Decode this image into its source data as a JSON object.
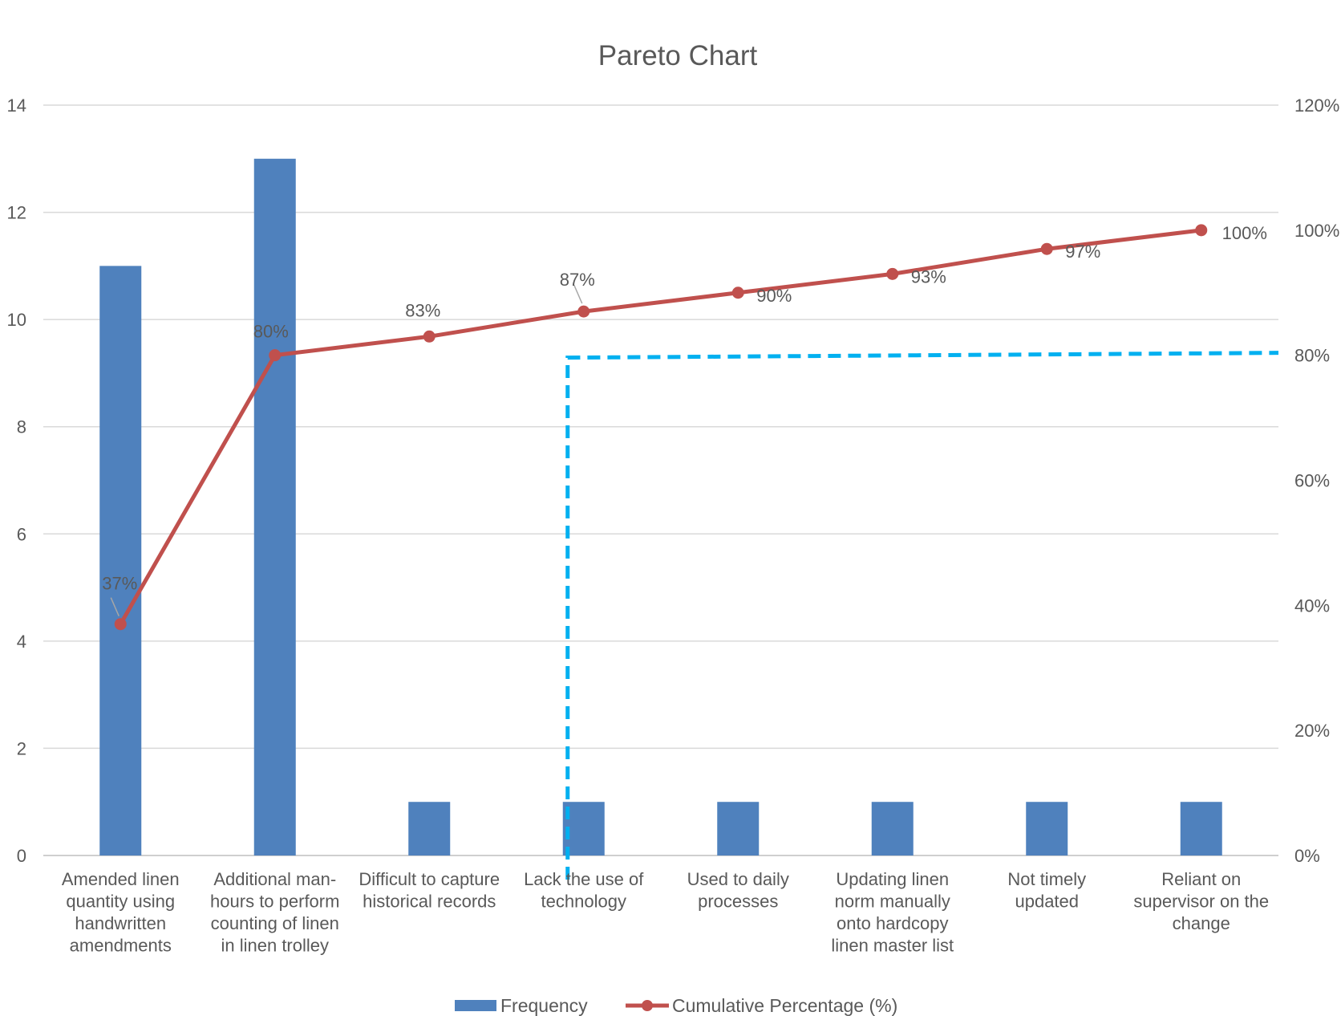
{
  "chart_data": {
    "type": "bar",
    "title": "Pareto Chart",
    "categories": [
      [
        "Amended linen",
        "quantity using",
        "handwritten",
        "amendments"
      ],
      [
        "Additional man-",
        "hours to perform",
        "counting of linen",
        "in linen trolley"
      ],
      [
        "Difficult to capture",
        "historical records"
      ],
      [
        "Lack the use of",
        "technology"
      ],
      [
        "Used to daily",
        "processes"
      ],
      [
        "Updating linen",
        "norm manually",
        "onto hardcopy",
        "linen master list"
      ],
      [
        "Not timely",
        "updated"
      ],
      [
        "Reliant on",
        "supervisor on the",
        "change"
      ]
    ],
    "series": [
      {
        "name": "Frequency",
        "type": "bar",
        "axis": "left",
        "color": "#4F81BD",
        "values": [
          11,
          13,
          1,
          1,
          1,
          1,
          1,
          1
        ]
      },
      {
        "name": "Cumulative Percentage (%)",
        "type": "line",
        "axis": "right",
        "color": "#C0504D",
        "values": [
          37,
          80,
          83,
          87,
          90,
          93,
          97,
          100
        ],
        "labels": [
          "37%",
          "80%",
          "83%",
          "87%",
          "90%",
          "93%",
          "97%",
          "100%"
        ]
      }
    ],
    "ylim_left": [
      0,
      14
    ],
    "yticks_left": [
      "0",
      "2",
      "4",
      "6",
      "8",
      "10",
      "12",
      "14"
    ],
    "ylim_right": [
      0,
      120
    ],
    "yticks_right": [
      "0%",
      "20%",
      "40%",
      "60%",
      "80%",
      "100%",
      "120%"
    ],
    "grid": true,
    "legend": "bottom",
    "annotation": {
      "type": "dashed-threshold",
      "color": "#00B0F0",
      "right_axis_value": 80,
      "x_between_categories": [
        3,
        4
      ]
    }
  }
}
